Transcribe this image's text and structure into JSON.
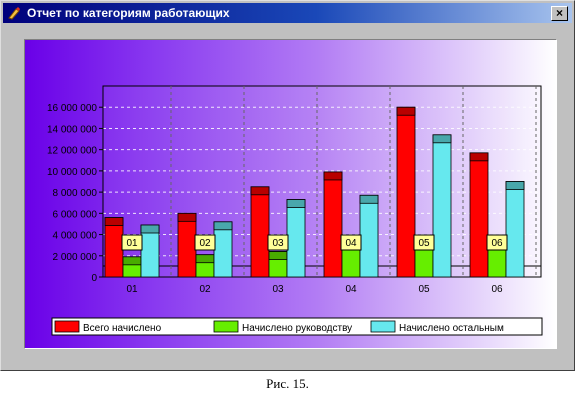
{
  "window": {
    "title": "Отчет по категориям работающих",
    "close_symbol": "×"
  },
  "caption": "Рис. 15.",
  "colors": {
    "total": "#ff0000",
    "management": "#66ee00",
    "others": "#66e8ee"
  },
  "chart_data": {
    "type": "bar",
    "title": "",
    "xlabel": "",
    "ylabel": "",
    "ylim": [
      0,
      18000000
    ],
    "yticks": [
      0,
      2000000,
      4000000,
      6000000,
      8000000,
      10000000,
      12000000,
      14000000,
      16000000
    ],
    "ytick_labels": [
      "0",
      "2 000 000",
      "4 000 000",
      "6 000 000",
      "8 000 000",
      "10 000 000",
      "12 000 000",
      "14 000 000",
      "16 000 000"
    ],
    "categories": [
      "01",
      "02",
      "03",
      "04",
      "05",
      "06"
    ],
    "data_labels": [
      "01",
      "02",
      "03",
      "04",
      "05",
      "06"
    ],
    "series": [
      {
        "name": "Всего начислено",
        "values": [
          5600000,
          6000000,
          8500000,
          9900000,
          16000000,
          11700000
        ]
      },
      {
        "name": "Начислено руководству",
        "values": [
          1900000,
          2100000,
          2400000,
          3300000,
          3800000,
          3800000
        ]
      },
      {
        "name": "Начислено остальным",
        "values": [
          4900000,
          5200000,
          7300000,
          7700000,
          13400000,
          9000000
        ]
      }
    ],
    "grid": true,
    "legend_position": "bottom",
    "style": "3d"
  }
}
